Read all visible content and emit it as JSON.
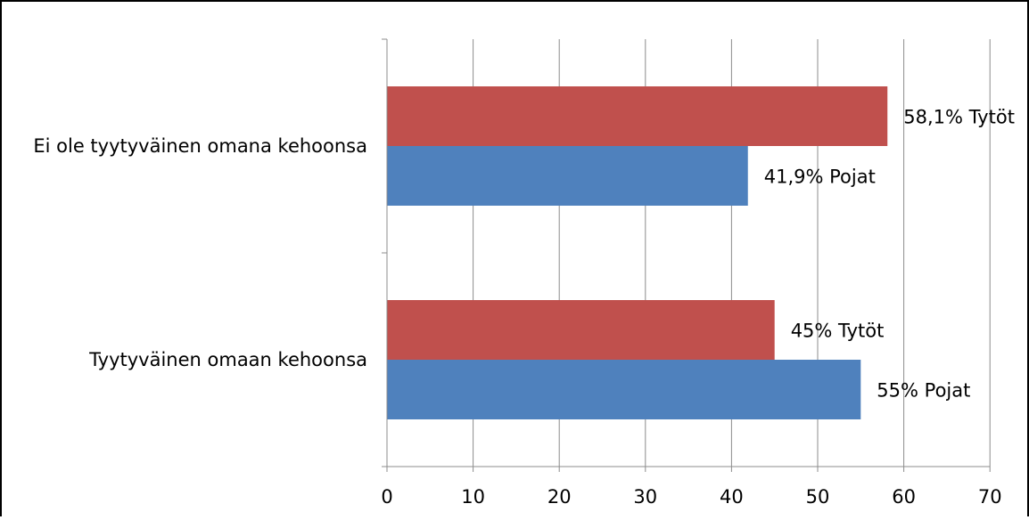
{
  "chart_data": {
    "type": "bar",
    "orientation": "horizontal",
    "categories": [
      "Ei ole tyytyväinen omana kehoonsa",
      "Tyytyväinen omaan kehoonsa"
    ],
    "series": [
      {
        "color": "#C0504D",
        "values": [
          58.1,
          45
        ],
        "labels": [
          "58,1% Tytöt",
          "45% Tytöt"
        ]
      },
      {
        "color": "#4F81BD",
        "values": [
          41.9,
          55
        ],
        "labels": [
          "41,9% Pojat",
          "55% Pojat"
        ]
      }
    ],
    "x_ticks": [
      "0",
      "10",
      "20",
      "30",
      "40",
      "50",
      "60",
      "70"
    ],
    "xlim": [
      0,
      70
    ],
    "grid": "vertical"
  }
}
